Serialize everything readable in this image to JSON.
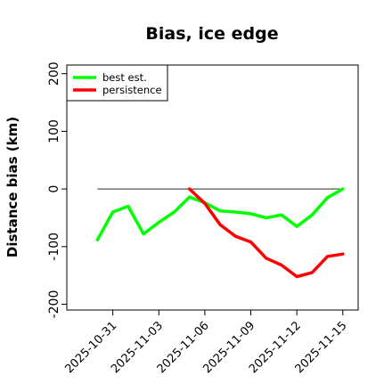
{
  "chart_data": {
    "type": "line",
    "title": "Bias, ice edge",
    "ylabel": "Distance bias (km)",
    "xlabel": "",
    "ylim": [
      -210,
      215
    ],
    "yticks": [
      -200,
      -100,
      0,
      100,
      200
    ],
    "xlim": [
      "2025-10-28",
      "2025-11-16"
    ],
    "xticks": [
      "2025-10-31",
      "2025-11-03",
      "2025-11-06",
      "2025-11-09",
      "2025-11-12",
      "2025-11-15"
    ],
    "reference_line": {
      "y": 0,
      "x_from": "2025-10-30",
      "x_to": "2025-11-15",
      "color": "#555555"
    },
    "legend": {
      "position": "top-left"
    },
    "series": [
      {
        "name": "best est.",
        "color": "#00ff00",
        "x": [
          "2025-10-30",
          "2025-10-31",
          "2025-11-01",
          "2025-11-02",
          "2025-11-03",
          "2025-11-04",
          "2025-11-05",
          "2025-11-06",
          "2025-11-07",
          "2025-11-08",
          "2025-11-09",
          "2025-11-10",
          "2025-11-11",
          "2025-11-12",
          "2025-11-13",
          "2025-11-14",
          "2025-11-15"
        ],
        "values": [
          -88,
          -40,
          -30,
          -78,
          -58,
          -40,
          -14,
          -24,
          -38,
          -40,
          -43,
          -50,
          -45,
          -65,
          -45,
          -15,
          0
        ]
      },
      {
        "name": "persistence",
        "color": "#ff0000",
        "x": [
          "2025-11-05",
          "2025-11-06",
          "2025-11-07",
          "2025-11-08",
          "2025-11-09",
          "2025-11-10",
          "2025-11-11",
          "2025-11-12",
          "2025-11-13",
          "2025-11-14",
          "2025-11-15"
        ],
        "values": [
          0,
          -25,
          -62,
          -82,
          -92,
          -120,
          -132,
          -152,
          -145,
          -117,
          -113
        ]
      }
    ]
  }
}
